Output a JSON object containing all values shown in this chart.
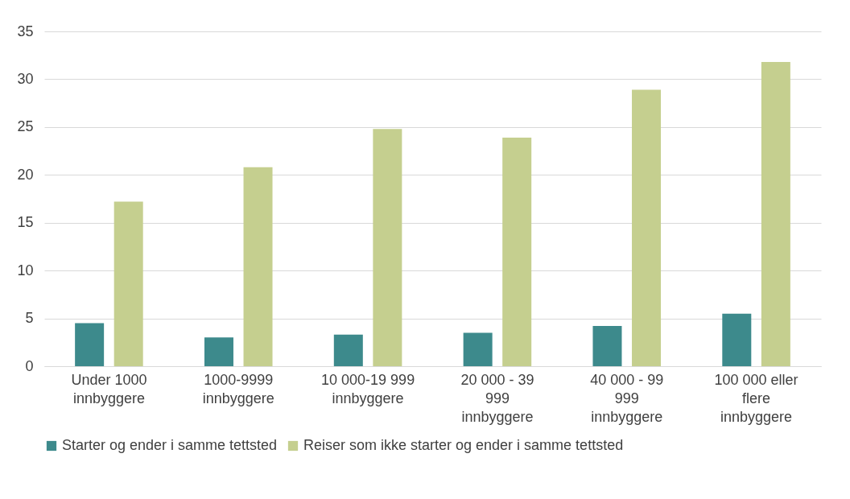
{
  "chart_data": {
    "type": "bar",
    "categories": [
      "Under 1000 innbyggere",
      "1000-9999 innbyggere",
      "10 000-19 999 innbyggere",
      "20 000 - 39 999 innbyggere",
      "40 000 - 99 999 innbyggere",
      "100 000 eller flere innbyggere"
    ],
    "series": [
      {
        "name": "Starter og ender i samme tettsted",
        "color": "#3d8a8c",
        "values": [
          4.5,
          3.0,
          3.3,
          3.5,
          4.2,
          5.5
        ]
      },
      {
        "name": "Reiser som ikke starter og ender i samme tettsted",
        "color": "#c5cf8f",
        "values": [
          17.2,
          20.8,
          24.8,
          23.9,
          28.9,
          31.8
        ]
      }
    ],
    "ylim": [
      0,
      35
    ],
    "yticks": [
      0,
      5,
      10,
      15,
      20,
      25,
      30,
      35
    ],
    "grid": "y",
    "legend": "bottom"
  }
}
